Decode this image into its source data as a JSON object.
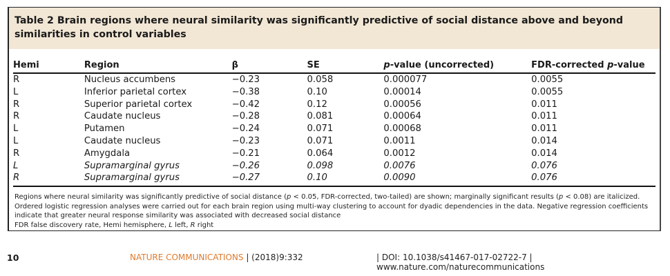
{
  "caption": {
    "label": "Table 2",
    "title": "Brain regions where neural similarity was significantly predictive of social distance above and beyond similarities in control variables"
  },
  "table": {
    "headers": {
      "hemi": "Hemi",
      "region": "Region",
      "beta": "β",
      "se": "SE",
      "p_prefix": "p",
      "p_suffix": "-value (uncorrected)",
      "fdr_prefix": "FDR-corrected ",
      "fdr_p": "p",
      "fdr_suffix": "-value"
    },
    "rows": [
      {
        "hemi": "R",
        "region": "Nucleus accumbens",
        "beta": "−0.23",
        "se": "0.058",
        "p": "0.000077",
        "fdr": "0.0055",
        "italic": false
      },
      {
        "hemi": "L",
        "region": "Inferior parietal cortex",
        "beta": "−0.38",
        "se": "0.10",
        "p": "0.00014",
        "fdr": "0.0055",
        "italic": false
      },
      {
        "hemi": "R",
        "region": "Superior parietal cortex",
        "beta": "−0.42",
        "se": "0.12",
        "p": "0.00056",
        "fdr": "0.011",
        "italic": false
      },
      {
        "hemi": "R",
        "region": "Caudate nucleus",
        "beta": "−0.28",
        "se": "0.081",
        "p": "0.00064",
        "fdr": "0.011",
        "italic": false
      },
      {
        "hemi": "L",
        "region": "Putamen",
        "beta": "−0.24",
        "se": "0.071",
        "p": "0.00068",
        "fdr": "0.011",
        "italic": false
      },
      {
        "hemi": "L",
        "region": "Caudate nucleus",
        "beta": "−0.23",
        "se": "0.071",
        "p": "0.0011",
        "fdr": "0.014",
        "italic": false
      },
      {
        "hemi": "R",
        "region": "Amygdala",
        "beta": "−0.21",
        "se": "0.064",
        "p": "0.0012",
        "fdr": "0.014",
        "italic": false
      },
      {
        "hemi": "L",
        "region": "Supramarginal gyrus",
        "beta": "−0.26",
        "se": "0.098",
        "p": "0.0076",
        "fdr": "0.076",
        "italic": true
      },
      {
        "hemi": "R",
        "region": "Supramarginal gyrus",
        "beta": "−0.27",
        "se": "0.10",
        "p": "0.0090",
        "fdr": "0.076",
        "italic": true
      }
    ]
  },
  "footnote": {
    "line1_a": "Regions where neural similarity was significantly predictive of social distance (",
    "line1_p1": "p",
    "line1_b": " < 0.05, FDR-corrected, two-tailed) are shown; marginally significant results (",
    "line1_p2": "p",
    "line1_c": " < 0.08) are italicized. Ordered logistic regression analyses were carried out for each brain region using multi-way clustering to account for dyadic dependencies in the data. Negative regression coefficients indicate that greater neural response similarity was associated with decreased social distance",
    "abbrev_a": "FDR false discovery rate, Hemi hemisphere, ",
    "abbrev_L": "L",
    "abbrev_b": " left, ",
    "abbrev_R": "R",
    "abbrev_c": " right"
  },
  "page_footer": {
    "page_number": "10",
    "journal": "NATURE COMMUNICATIONS",
    "separator": " | ",
    "citation": "(2018)9:332",
    "doi": "| DOI: 10.1038/s41467-017-02722-7 | www.nature.com/naturecommunications",
    "journal_color": "#e07a2e"
  },
  "colors": {
    "caption_bg": "#f2e7d5"
  }
}
